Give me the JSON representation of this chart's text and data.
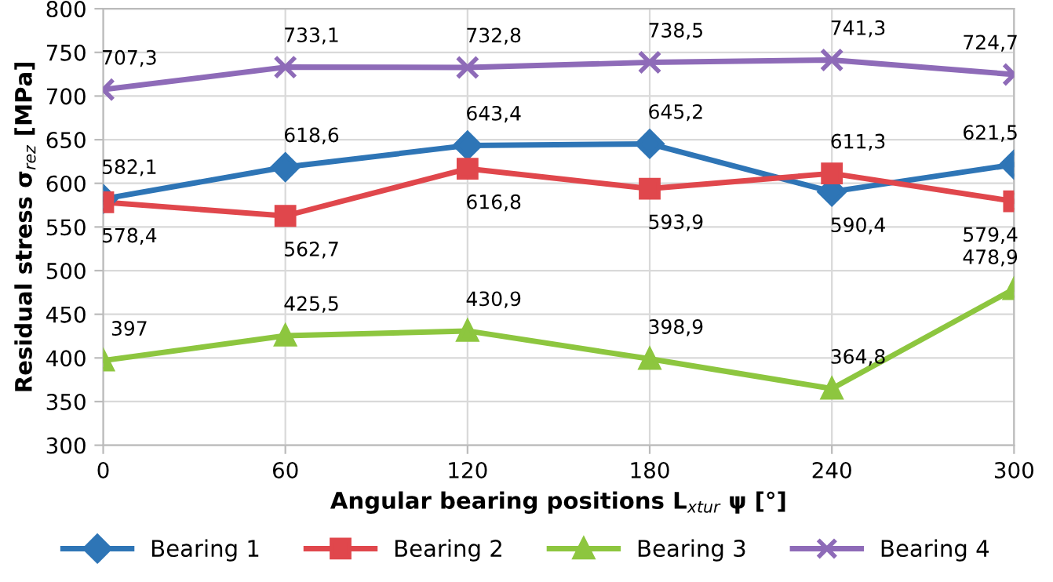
{
  "chart_data": {
    "type": "line",
    "xlabel": "Angular bearing positions L$_{xtur}$ ψ [°]",
    "ylabel": "Residual stress σ$_{rez}$ [MPa]",
    "x": [
      0,
      60,
      120,
      180,
      240,
      300
    ],
    "xlim": [
      0,
      300
    ],
    "xticks": [
      0,
      60,
      120,
      180,
      240,
      300
    ],
    "ylim": [
      300,
      800
    ],
    "yticks": [
      300,
      350,
      400,
      450,
      500,
      550,
      600,
      650,
      700,
      750,
      800
    ],
    "grid": true,
    "legend": "bottom",
    "series": [
      {
        "name": "Bearing 1",
        "color": "#2e75b6",
        "marker": "diamond",
        "values": [
          582.1,
          618.6,
          643.4,
          645.2,
          590.4,
          621.5
        ],
        "value_labels": [
          "582,1",
          "618,6",
          "643,4",
          "645,2",
          "590,4",
          "621,5"
        ]
      },
      {
        "name": "Bearing 2",
        "color": "#e0474c",
        "marker": "square",
        "values": [
          578.4,
          562.7,
          616.8,
          593.9,
          611.3,
          579.4
        ],
        "value_labels": [
          "578,4",
          "562,7",
          "616,8",
          "593,9",
          "611,3",
          "579,4"
        ]
      },
      {
        "name": "Bearing 3",
        "color": "#8dc63f",
        "marker": "triangle",
        "values": [
          397,
          425.5,
          430.9,
          398.9,
          364.8,
          478.9
        ],
        "value_labels": [
          "397",
          "425,5",
          "430,9",
          "398,9",
          "364,8",
          "478,9"
        ]
      },
      {
        "name": "Bearing 4",
        "color": "#8e6bb8",
        "marker": "cross",
        "values": [
          707.3,
          733.1,
          732.8,
          738.5,
          741.3,
          724.7
        ],
        "value_labels": [
          "707,3",
          "733,1",
          "732,8",
          "738,5",
          "741,3",
          "724,7"
        ]
      }
    ]
  }
}
